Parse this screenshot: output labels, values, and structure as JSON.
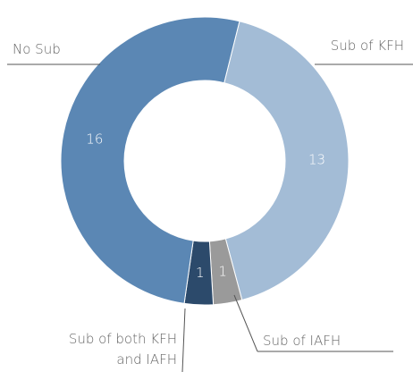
{
  "chart_data": {
    "type": "donut",
    "categories": [
      "Sub of KFH",
      "Sub of IAFH",
      "Sub of both KFH and IAFH",
      "No Sub"
    ],
    "values": [
      13,
      1,
      1,
      16
    ],
    "colors": [
      "#a3bcd6",
      "#9a9a9a",
      "#2c4a6b",
      "#5b87b4"
    ]
  }
}
